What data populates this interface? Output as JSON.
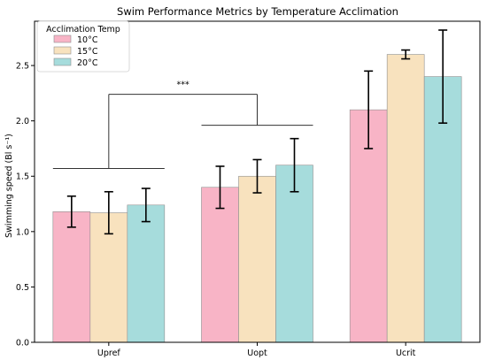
{
  "chart_data": {
    "type": "bar",
    "title": "Swim Performance Metrics by Temperature Acclimation",
    "xlabel": "",
    "ylabel": "Swimming speed (Bl s⁻¹)",
    "ylim": [
      0,
      2.9
    ],
    "yticks": [
      0.0,
      0.5,
      1.0,
      1.5,
      2.0,
      2.5
    ],
    "ytick_labels": [
      "0.0",
      "0.5",
      "1.0",
      "1.5",
      "2.0",
      "2.5"
    ],
    "categories": [
      "Upref",
      "Uopt",
      "Ucrit"
    ],
    "legend_title": "Acclimation Temp",
    "legend_position": "top-left",
    "series": [
      {
        "name": "10°C",
        "color": "#f8b4c6",
        "values": [
          1.18,
          1.4,
          2.1
        ],
        "errors": [
          0.14,
          0.19,
          0.35
        ]
      },
      {
        "name": "15°C",
        "color": "#f8e2be",
        "values": [
          1.17,
          1.5,
          2.6
        ],
        "errors": [
          0.19,
          0.15,
          0.04
        ]
      },
      {
        "name": "20°C",
        "color": "#a6dcdc",
        "values": [
          1.24,
          1.6,
          2.4
        ],
        "errors": [
          0.15,
          0.24,
          0.42
        ]
      }
    ],
    "significance": {
      "label": "***",
      "groups": [
        {
          "from": "Upref",
          "to": "Upref",
          "y": 1.57
        },
        {
          "from": "Uopt",
          "to": "Uopt",
          "y": 1.96
        }
      ],
      "connector_y": 2.24
    },
    "grid": false
  }
}
